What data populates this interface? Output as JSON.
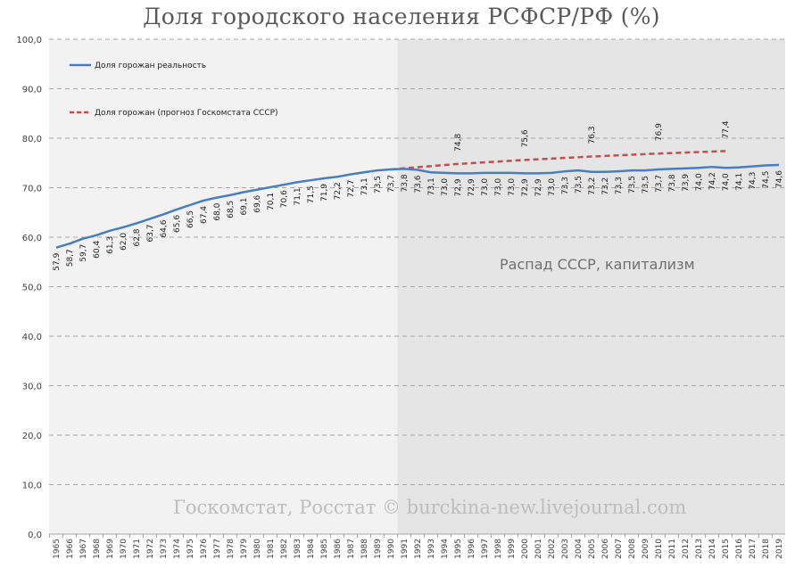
{
  "chart_data": {
    "type": "line",
    "title": "Доля городского населения РСФСР/РФ (%)",
    "xlabel": "",
    "ylabel": "",
    "ylim": [
      0,
      100
    ],
    "yticks": [
      "0,0",
      "10,0",
      "20,0",
      "30,0",
      "40,0",
      "50,0",
      "60,0",
      "70,0",
      "80,0",
      "90,0",
      "100,0"
    ],
    "grid": true,
    "legend_position": "upper-left (inside plot)",
    "x": [
      1965,
      1966,
      1967,
      1968,
      1969,
      1970,
      1971,
      1972,
      1973,
      1974,
      1975,
      1976,
      1977,
      1978,
      1979,
      1980,
      1981,
      1982,
      1983,
      1984,
      1985,
      1986,
      1987,
      1988,
      1989,
      1990,
      1991,
      1992,
      1993,
      1994,
      1995,
      1996,
      1997,
      1998,
      1999,
      2000,
      2001,
      2002,
      2003,
      2004,
      2005,
      2006,
      2007,
      2008,
      2009,
      2010,
      2011,
      2012,
      2013,
      2014,
      2015,
      2016,
      2017,
      2018,
      2019
    ],
    "series": [
      {
        "name": "Доля горожан реальность",
        "color": "#4a7ebb",
        "style": "solid",
        "values": [
          57.9,
          58.7,
          59.7,
          60.4,
          61.3,
          62.0,
          62.8,
          63.7,
          64.6,
          65.6,
          66.5,
          67.4,
          68.0,
          68.5,
          69.1,
          69.6,
          70.1,
          70.6,
          71.1,
          71.5,
          71.9,
          72.2,
          72.7,
          73.1,
          73.5,
          73.7,
          73.8,
          73.6,
          73.1,
          73.0,
          72.9,
          72.9,
          73.0,
          73.0,
          73.0,
          72.9,
          72.9,
          73.0,
          73.3,
          73.5,
          73.2,
          73.2,
          73.3,
          73.5,
          73.5,
          73.7,
          73.8,
          73.9,
          74.0,
          74.2,
          74.0,
          74.1,
          74.3,
          74.5,
          74.6
        ]
      },
      {
        "name": "Доля горожан (прогноз Госкомстата СССР)",
        "color": "#c0504d",
        "style": "dashed",
        "x": [
          1990,
          1995,
          2000,
          2005,
          2010,
          2015
        ],
        "values": [
          73.7,
          74.8,
          75.6,
          76.3,
          76.9,
          77.4
        ],
        "labeled_points": [
          {
            "x": 1995,
            "label": "74,8"
          },
          {
            "x": 2000,
            "label": "75,6"
          },
          {
            "x": 2005,
            "label": "76,3"
          },
          {
            "x": 2010,
            "label": "76,9"
          },
          {
            "x": 2015,
            "label": "77,4"
          }
        ]
      }
    ],
    "shaded_region": {
      "from": 1990.5,
      "to": 2019.5,
      "color": "#e5e5e5"
    },
    "annotations": [
      "Распад СССР, капитализм"
    ],
    "watermark": "Госкомстат, Росстат © burckina-new.livejournal.com"
  },
  "title": "Доля городского населения РСФСР/РФ (%)",
  "legend": {
    "real": "Доля горожан реальность",
    "forecast": "Доля горожан (прогноз Госкомстата СССР)"
  },
  "annotation": "Распад СССР, капитализм",
  "watermark": "Госкомстат, Росстат © burckina-new.livejournal.com"
}
